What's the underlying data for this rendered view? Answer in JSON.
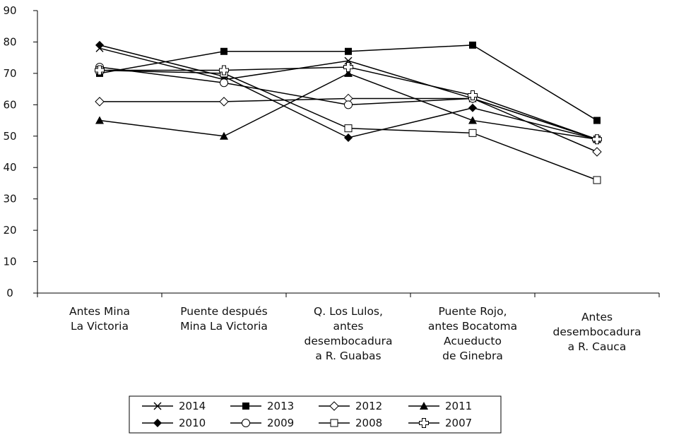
{
  "chart_data": {
    "type": "line",
    "title": "",
    "xlabel": "",
    "ylabel": "",
    "ylim": [
      0,
      90
    ],
    "yticks": [
      "0",
      "10",
      "20",
      "30",
      "40",
      "50",
      "60",
      "70",
      "80",
      "90"
    ],
    "grid": false,
    "legend_position": "bottom",
    "categories": [
      [
        "Antes Mina",
        "La Victoria"
      ],
      [
        "Puente después",
        "Mina La Victoria"
      ],
      [
        "Q. Los Lulos,",
        "antes",
        "desembocadura",
        "a R. Guabas"
      ],
      [
        "Puente Rojo,",
        "antes Bocatoma",
        "Acueducto",
        "de Ginebra"
      ],
      [
        "Antes",
        "desembocadura",
        "a R. Cauca"
      ]
    ],
    "series": [
      {
        "name": "2014",
        "marker": "x",
        "values": [
          78,
          68,
          74,
          62,
          49
        ]
      },
      {
        "name": "2013",
        "marker": "filled-square",
        "values": [
          70,
          77,
          77,
          79,
          55
        ]
      },
      {
        "name": "2012",
        "marker": "open-diamond",
        "values": [
          61,
          61,
          62,
          62,
          45
        ]
      },
      {
        "name": "2011",
        "marker": "filled-triangle",
        "values": [
          55,
          50,
          70,
          55,
          49
        ]
      },
      {
        "name": "2010",
        "marker": "filled-diamond",
        "values": [
          79,
          69,
          49.5,
          59,
          49
        ]
      },
      {
        "name": "2009",
        "marker": "open-circle",
        "values": [
          72,
          67,
          60,
          62,
          49
        ]
      },
      {
        "name": "2008",
        "marker": "open-square",
        "values": [
          71,
          70,
          52.5,
          51,
          36
        ]
      },
      {
        "name": "2007",
        "marker": "open-cross",
        "values": [
          71,
          71,
          72,
          63,
          49
        ]
      }
    ]
  }
}
